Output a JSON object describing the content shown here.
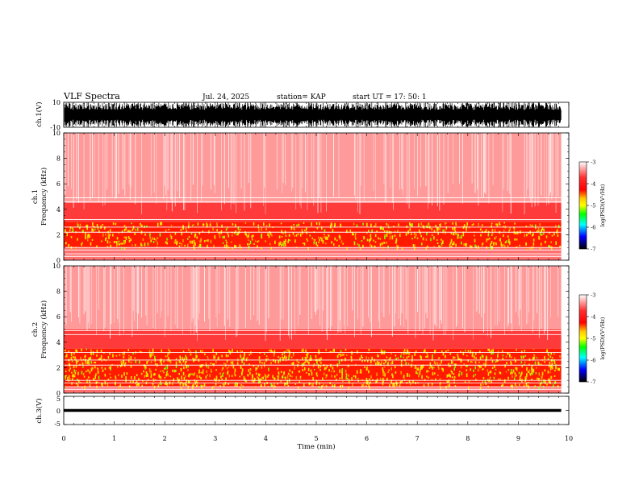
{
  "header": {
    "title": "VLF Spectra",
    "date": "Jul. 24, 2025",
    "station": "station= KAP",
    "start_time": "start UT =   17: 50: 1"
  },
  "chart_data": {
    "type": "heatmap",
    "title": "VLF Spectra",
    "xlabel": "Time (min)",
    "xlim": [
      0,
      10
    ],
    "x_ticks": [
      "0",
      "1",
      "2",
      "3",
      "4",
      "5",
      "6",
      "7",
      "8",
      "9",
      "10"
    ],
    "panels": [
      {
        "id": "ch1-waveform",
        "type": "line",
        "ylabel": "ch.1(V)",
        "ylim": [
          -10,
          10
        ],
        "y_ticks": [
          "10",
          "-10"
        ],
        "data_end_min": 9.85
      },
      {
        "id": "ch1-spectrogram",
        "type": "heatmap",
        "ylabel_top": "ch.1",
        "ylabel": "Frequency (kHz)",
        "ylim": [
          0,
          10
        ],
        "y_ticks": [
          "0",
          "2",
          "4",
          "6",
          "8",
          "10"
        ],
        "dominant_band_khz": [
          1,
          3
        ],
        "data_end_min": 9.85
      },
      {
        "id": "ch2-spectrogram",
        "type": "heatmap",
        "ylabel_top": "ch.2",
        "ylabel": "Frequency (kHz)",
        "ylim": [
          0,
          10
        ],
        "y_ticks": [
          "0",
          "2",
          "4",
          "6",
          "8",
          "10"
        ],
        "dominant_band_khz": [
          0.5,
          3.5
        ],
        "data_end_min": 9.85
      },
      {
        "id": "ch3-waveform",
        "type": "line",
        "ylabel": "ch.3(V)",
        "ylim": [
          -5,
          5
        ],
        "y_ticks": [
          "5",
          "0",
          "-5"
        ],
        "data_end_min": 9.85
      }
    ],
    "colorbar": {
      "label": "log(PSD)(V²/Hz)",
      "range": [
        -7,
        -3
      ],
      "ticks": [
        "-3",
        "-4",
        "-5",
        "-6",
        "-7"
      ],
      "colors": [
        "#ffffff",
        "#ff0000",
        "#ffff00",
        "#00ff00",
        "#00ffff",
        "#0000ff",
        "#000000"
      ]
    }
  }
}
